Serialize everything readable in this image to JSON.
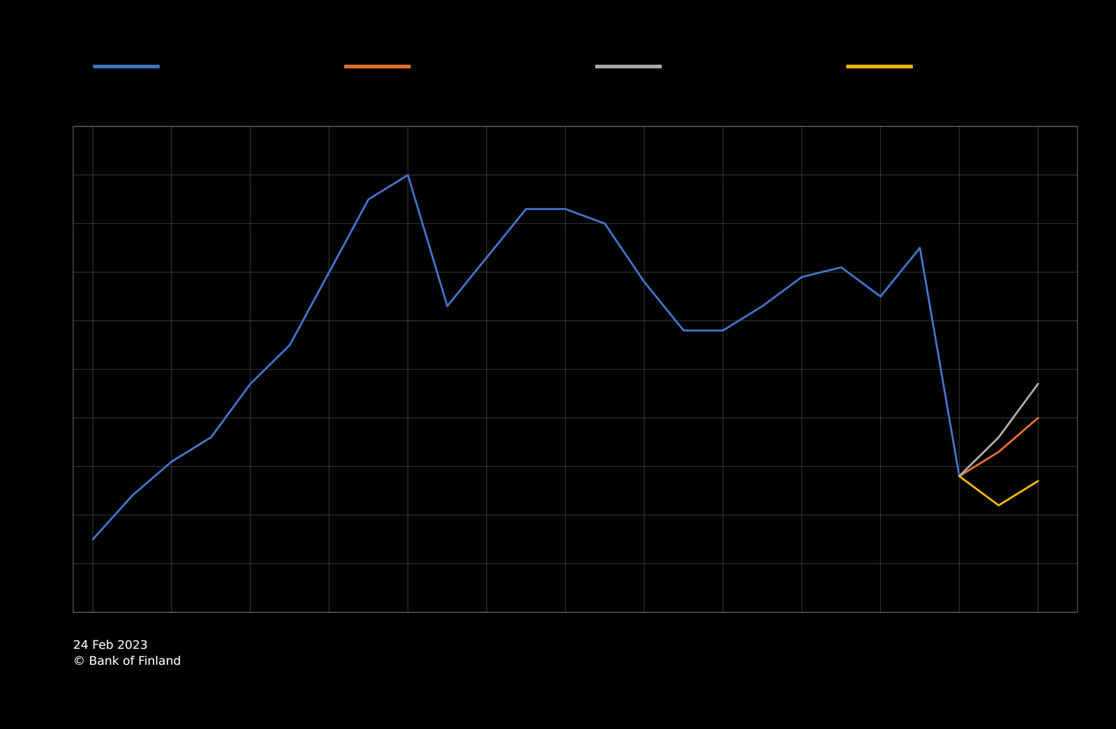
{
  "chart_data": {
    "type": "line",
    "x": [
      2000,
      2001,
      2002,
      2003,
      2004,
      2005,
      2006,
      2007,
      2008,
      2009,
      2010,
      2011,
      2012,
      2013,
      2014,
      2015,
      2016,
      2017,
      2018,
      2019,
      2020,
      2021,
      2022,
      2023,
      2024
    ],
    "series": [
      {
        "color": "#4472c4",
        "values": [
          100,
          109,
          116,
          121,
          132,
          140,
          155,
          170,
          175,
          148,
          158,
          168,
          168,
          165,
          153,
          143,
          143,
          148,
          154,
          156,
          150,
          160,
          113,
          null,
          null
        ]
      },
      {
        "color": "#e07030",
        "values": [
          null,
          null,
          null,
          null,
          null,
          null,
          null,
          null,
          null,
          null,
          null,
          null,
          null,
          null,
          null,
          null,
          null,
          null,
          null,
          null,
          null,
          null,
          113,
          118,
          125
        ]
      },
      {
        "color": "#aaaaaa",
        "values": [
          null,
          null,
          null,
          null,
          null,
          null,
          null,
          null,
          null,
          null,
          null,
          null,
          null,
          null,
          null,
          null,
          null,
          null,
          null,
          null,
          null,
          null,
          113,
          121,
          132
        ]
      },
      {
        "color": "#f0b800",
        "values": [
          null,
          null,
          null,
          null,
          null,
          null,
          null,
          null,
          null,
          null,
          null,
          null,
          null,
          null,
          null,
          null,
          null,
          null,
          null,
          null,
          null,
          null,
          113,
          107,
          112
        ]
      }
    ],
    "xlim": [
      1999.5,
      2025.0
    ],
    "xticks": [
      2000,
      2002,
      2004,
      2006,
      2008,
      2010,
      2012,
      2014,
      2016,
      2018,
      2020,
      2022,
      2024
    ],
    "ylim": [
      85,
      185
    ],
    "yticks": [
      85,
      95,
      105,
      115,
      125,
      135,
      145,
      155,
      165,
      175,
      185
    ],
    "grid": true,
    "tick_labels": false,
    "legend": "top",
    "annotations": [
      "24 Feb 2023\n© Bank of Finland"
    ]
  }
}
